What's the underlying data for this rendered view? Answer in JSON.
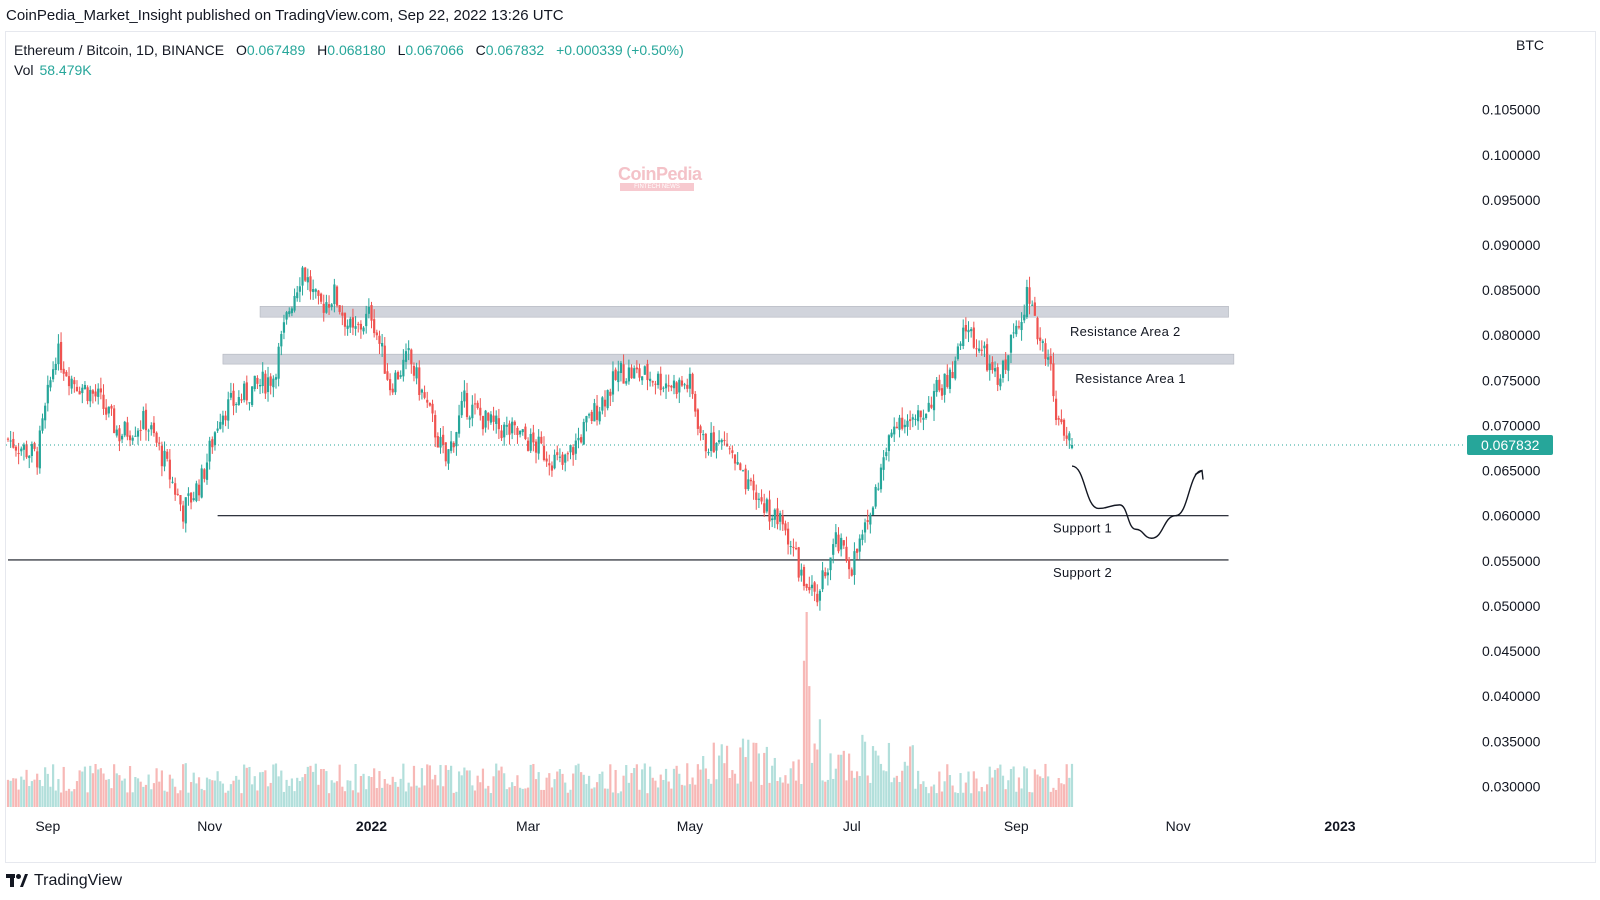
{
  "publisher_line": "CoinPedia_Market_Insight published on TradingView.com, Sep 22, 2022 13:26 UTC",
  "legend": {
    "symbol": "Ethereum / Bitcoin, 1D, BINANCE",
    "open_label": "O",
    "open": "0.067489",
    "high_label": "H",
    "high": "0.068180",
    "low_label": "L",
    "low": "0.067066",
    "close_label": "C",
    "close": "0.067832",
    "change": "+0.000339 (+0.50%)",
    "vol_label": "Vol",
    "vol": "58.479K"
  },
  "currency": "BTC",
  "watermark": {
    "text": "CoinPedia",
    "sub": "FINTECH NEWS"
  },
  "footer": {
    "brand": "TradingView"
  },
  "colors": {
    "up": "#26a69a",
    "down": "#ef5350",
    "up_vol": "#b2dfdb",
    "down_vol": "#f7b8b6",
    "zone": "#d1d4dc",
    "price_tag": "#26a69a"
  },
  "chart_data": {
    "type": "candlestick",
    "ylim": [
      0.0265,
      0.1105
    ],
    "y_ticks": [
      "0.105000",
      "0.100000",
      "0.095000",
      "0.090000",
      "0.085000",
      "0.080000",
      "0.075000",
      "0.070000",
      "0.065000",
      "0.060000",
      "0.055000",
      "0.050000",
      "0.045000",
      "0.040000",
      "0.035000",
      "0.030000"
    ],
    "x_ticks": [
      {
        "label": "Sep",
        "date": "2021-09-01",
        "bold": false
      },
      {
        "label": "Nov",
        "date": "2021-11-01",
        "bold": false
      },
      {
        "label": "2022",
        "date": "2022-01-01",
        "bold": true
      },
      {
        "label": "Mar",
        "date": "2022-03-01",
        "bold": false
      },
      {
        "label": "May",
        "date": "2022-05-01",
        "bold": false
      },
      {
        "label": "Jul",
        "date": "2022-07-01",
        "bold": false
      },
      {
        "label": "Sep",
        "date": "2022-09-01",
        "bold": false
      },
      {
        "label": "Nov",
        "date": "2022-11-01",
        "bold": false
      },
      {
        "label": "2023",
        "date": "2023-01-01",
        "bold": true
      }
    ],
    "last_price": 0.067832,
    "last_price_label": "0.067832",
    "price_path": [
      {
        "date": "2021-08-17",
        "close": 0.0685
      },
      {
        "date": "2021-08-28",
        "close": 0.0665
      },
      {
        "date": "2021-09-04",
        "close": 0.0782
      },
      {
        "date": "2021-09-10",
        "close": 0.0752
      },
      {
        "date": "2021-09-20",
        "close": 0.073
      },
      {
        "date": "2021-09-28",
        "close": 0.069
      },
      {
        "date": "2021-10-08",
        "close": 0.0705
      },
      {
        "date": "2021-10-15",
        "close": 0.066
      },
      {
        "date": "2021-10-22",
        "close": 0.0605
      },
      {
        "date": "2021-10-29",
        "close": 0.064
      },
      {
        "date": "2021-11-05",
        "close": 0.0715
      },
      {
        "date": "2021-11-15",
        "close": 0.0735
      },
      {
        "date": "2021-11-25",
        "close": 0.0755
      },
      {
        "date": "2021-12-01",
        "close": 0.083
      },
      {
        "date": "2021-12-06",
        "close": 0.0875
      },
      {
        "date": "2021-12-12",
        "close": 0.083
      },
      {
        "date": "2021-12-18",
        "close": 0.0845
      },
      {
        "date": "2021-12-25",
        "close": 0.08
      },
      {
        "date": "2022-01-01",
        "close": 0.0825
      },
      {
        "date": "2022-01-08",
        "close": 0.0745
      },
      {
        "date": "2022-01-15",
        "close": 0.0775
      },
      {
        "date": "2022-01-22",
        "close": 0.072
      },
      {
        "date": "2022-01-29",
        "close": 0.066
      },
      {
        "date": "2022-02-05",
        "close": 0.0725
      },
      {
        "date": "2022-02-15",
        "close": 0.07
      },
      {
        "date": "2022-02-25",
        "close": 0.069
      },
      {
        "date": "2022-03-05",
        "close": 0.0675
      },
      {
        "date": "2022-03-14",
        "close": 0.0655
      },
      {
        "date": "2022-03-25",
        "close": 0.071
      },
      {
        "date": "2022-04-05",
        "close": 0.076
      },
      {
        "date": "2022-04-15",
        "close": 0.0755
      },
      {
        "date": "2022-04-25",
        "close": 0.0745
      },
      {
        "date": "2022-05-01",
        "close": 0.0745
      },
      {
        "date": "2022-05-06",
        "close": 0.068
      },
      {
        "date": "2022-05-15",
        "close": 0.068
      },
      {
        "date": "2022-05-22",
        "close": 0.063
      },
      {
        "date": "2022-05-30",
        "close": 0.061
      },
      {
        "date": "2022-06-07",
        "close": 0.058
      },
      {
        "date": "2022-06-13",
        "close": 0.0525
      },
      {
        "date": "2022-06-18",
        "close": 0.051
      },
      {
        "date": "2022-06-25",
        "close": 0.057
      },
      {
        "date": "2022-07-01",
        "close": 0.0545
      },
      {
        "date": "2022-07-07",
        "close": 0.059
      },
      {
        "date": "2022-07-12",
        "close": 0.065
      },
      {
        "date": "2022-07-18",
        "close": 0.071
      },
      {
        "date": "2022-07-25",
        "close": 0.07
      },
      {
        "date": "2022-08-01",
        "close": 0.0735
      },
      {
        "date": "2022-08-08",
        "close": 0.0755
      },
      {
        "date": "2022-08-13",
        "close": 0.081
      },
      {
        "date": "2022-08-20",
        "close": 0.0775
      },
      {
        "date": "2022-08-25",
        "close": 0.0745
      },
      {
        "date": "2022-09-01",
        "close": 0.081
      },
      {
        "date": "2022-09-05",
        "close": 0.0845
      },
      {
        "date": "2022-09-08",
        "close": 0.081
      },
      {
        "date": "2022-09-13",
        "close": 0.078
      },
      {
        "date": "2022-09-17",
        "close": 0.07
      },
      {
        "date": "2022-09-22",
        "close": 0.0678
      }
    ],
    "volume_spikes": [
      {
        "date": "2022-05-10",
        "rel": 0.33
      },
      {
        "date": "2022-06-13",
        "rel": 0.75
      },
      {
        "date": "2022-06-14",
        "rel": 1.0
      },
      {
        "date": "2022-06-15",
        "rel": 0.62
      },
      {
        "date": "2022-06-19",
        "rel": 0.45
      },
      {
        "date": "2022-07-05",
        "rel": 0.37
      }
    ],
    "zones": [
      {
        "label": "Resistance Area 2",
        "from": 0.082,
        "to": 0.0832,
        "start": "2021-11-20",
        "end": "2022-11-20"
      },
      {
        "label": "Resistance Area 1",
        "from": 0.0768,
        "to": 0.0779,
        "start": "2021-11-06",
        "end": "2022-11-22"
      }
    ],
    "levels": [
      {
        "label": "Support 1",
        "value": 0.06,
        "start": "2021-11-04",
        "end": "2022-11-20"
      },
      {
        "label": "Support 2",
        "value": 0.0551,
        "start": "2021-08-17",
        "end": "2022-11-20"
      }
    ],
    "projection": [
      {
        "date": "2022-09-22",
        "value": 0.0655
      },
      {
        "date": "2022-10-02",
        "value": 0.0608
      },
      {
        "date": "2022-10-10",
        "value": 0.0612
      },
      {
        "date": "2022-10-16",
        "value": 0.0585
      },
      {
        "date": "2022-10-22",
        "value": 0.0575
      },
      {
        "date": "2022-10-31",
        "value": 0.06
      },
      {
        "date": "2022-11-10",
        "value": 0.065
      }
    ]
  }
}
